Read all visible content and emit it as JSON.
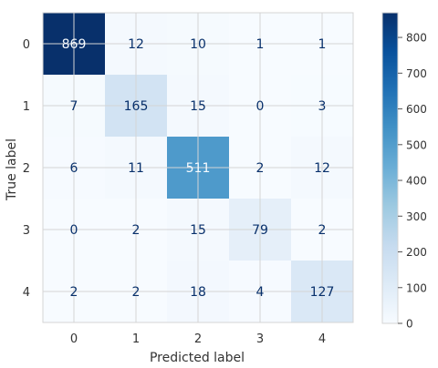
{
  "chart_data": {
    "type": "heatmap",
    "title": "",
    "xlabel": "Predicted label",
    "ylabel": "True label",
    "x_categories": [
      "0",
      "1",
      "2",
      "3",
      "4"
    ],
    "y_categories": [
      "0",
      "1",
      "2",
      "3",
      "4"
    ],
    "matrix": [
      [
        869,
        12,
        10,
        1,
        1
      ],
      [
        7,
        165,
        15,
        0,
        3
      ],
      [
        6,
        11,
        511,
        2,
        12
      ],
      [
        0,
        2,
        15,
        79,
        2
      ],
      [
        2,
        2,
        18,
        4,
        127
      ]
    ],
    "colormap": "Blues",
    "vmin": 0,
    "vmax": 869,
    "colorbar_ticks": [
      0,
      100,
      200,
      300,
      400,
      500,
      600,
      700,
      800
    ],
    "grid": true,
    "colors": {
      "low": "#f7fbff",
      "high": "#08306b",
      "text_dark": "#08306b",
      "text_light": "#f7fbff",
      "grid": "#d4d4d4"
    }
  }
}
